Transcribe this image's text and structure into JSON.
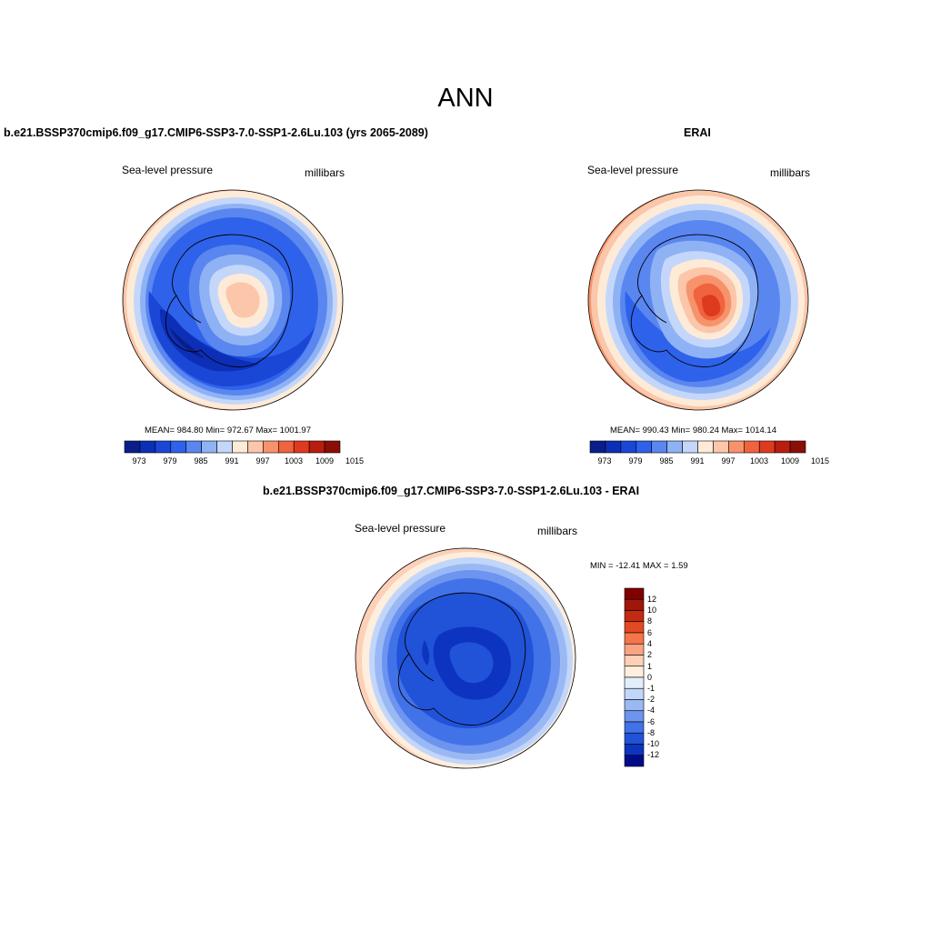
{
  "figure": {
    "title": "ANN",
    "colors": {
      "sequential": [
        "#0a1e8a",
        "#0d2fb8",
        "#1a47d6",
        "#2f62ea",
        "#5a86f0",
        "#8fb2f5",
        "#c4d7fb",
        "#fdebd8",
        "#fbc6a9",
        "#f7936b",
        "#f0633f",
        "#de3a1e",
        "#b91d0e",
        "#8a0f06"
      ],
      "difference": [
        "#800000",
        "#a0160a",
        "#c42a12",
        "#e34a22",
        "#f5764a",
        "#fba482",
        "#fdd0b7",
        "#fdeedd",
        "#e3eefc",
        "#c2d6fa",
        "#9ab9f4",
        "#6d94ef",
        "#4272e8",
        "#2153d9",
        "#0d34c0",
        "#000b8a"
      ]
    }
  },
  "panels": [
    {
      "title": "b.e21.BSSP370cmip6.f09_g17.CMIP6-SSP3-7.0-SSP1-2.6Lu.103 (yrs 2065-2089)",
      "variable": "Sea-level pressure",
      "units": "millibars",
      "stats": "MEAN= 984.80  Min= 972.67  Max= 1001.97",
      "colorbar_ticks": [
        "973",
        "979",
        "985",
        "991",
        "997",
        "1003",
        "1009",
        "1015"
      ],
      "stats_values": {
        "mean": 984.8,
        "min": 972.67,
        "max": 1001.97
      }
    },
    {
      "title": "ERAI",
      "variable": "Sea-level pressure",
      "units": "millibars",
      "stats": "MEAN= 990.43  Min= 980.24  Max= 1014.14",
      "colorbar_ticks": [
        "973",
        "979",
        "985",
        "991",
        "997",
        "1003",
        "1009",
        "1015"
      ],
      "stats_values": {
        "mean": 990.43,
        "min": 980.24,
        "max": 1014.14
      }
    },
    {
      "title": "b.e21.BSSP370cmip6.f09_g17.CMIP6-SSP3-7.0-SSP1-2.6Lu.103 - ERAI",
      "variable": "Sea-level pressure",
      "units": "millibars",
      "stats": "MIN = -12.41 MAX =   1.59",
      "colorbar_ticks": [
        "12",
        "10",
        "8",
        "6",
        "4",
        "2",
        "1",
        "0",
        "-1",
        "-2",
        "-4",
        "-6",
        "-8",
        "-10",
        "-12"
      ],
      "stats_values": {
        "min": -12.41,
        "max": 1.59
      }
    }
  ]
}
